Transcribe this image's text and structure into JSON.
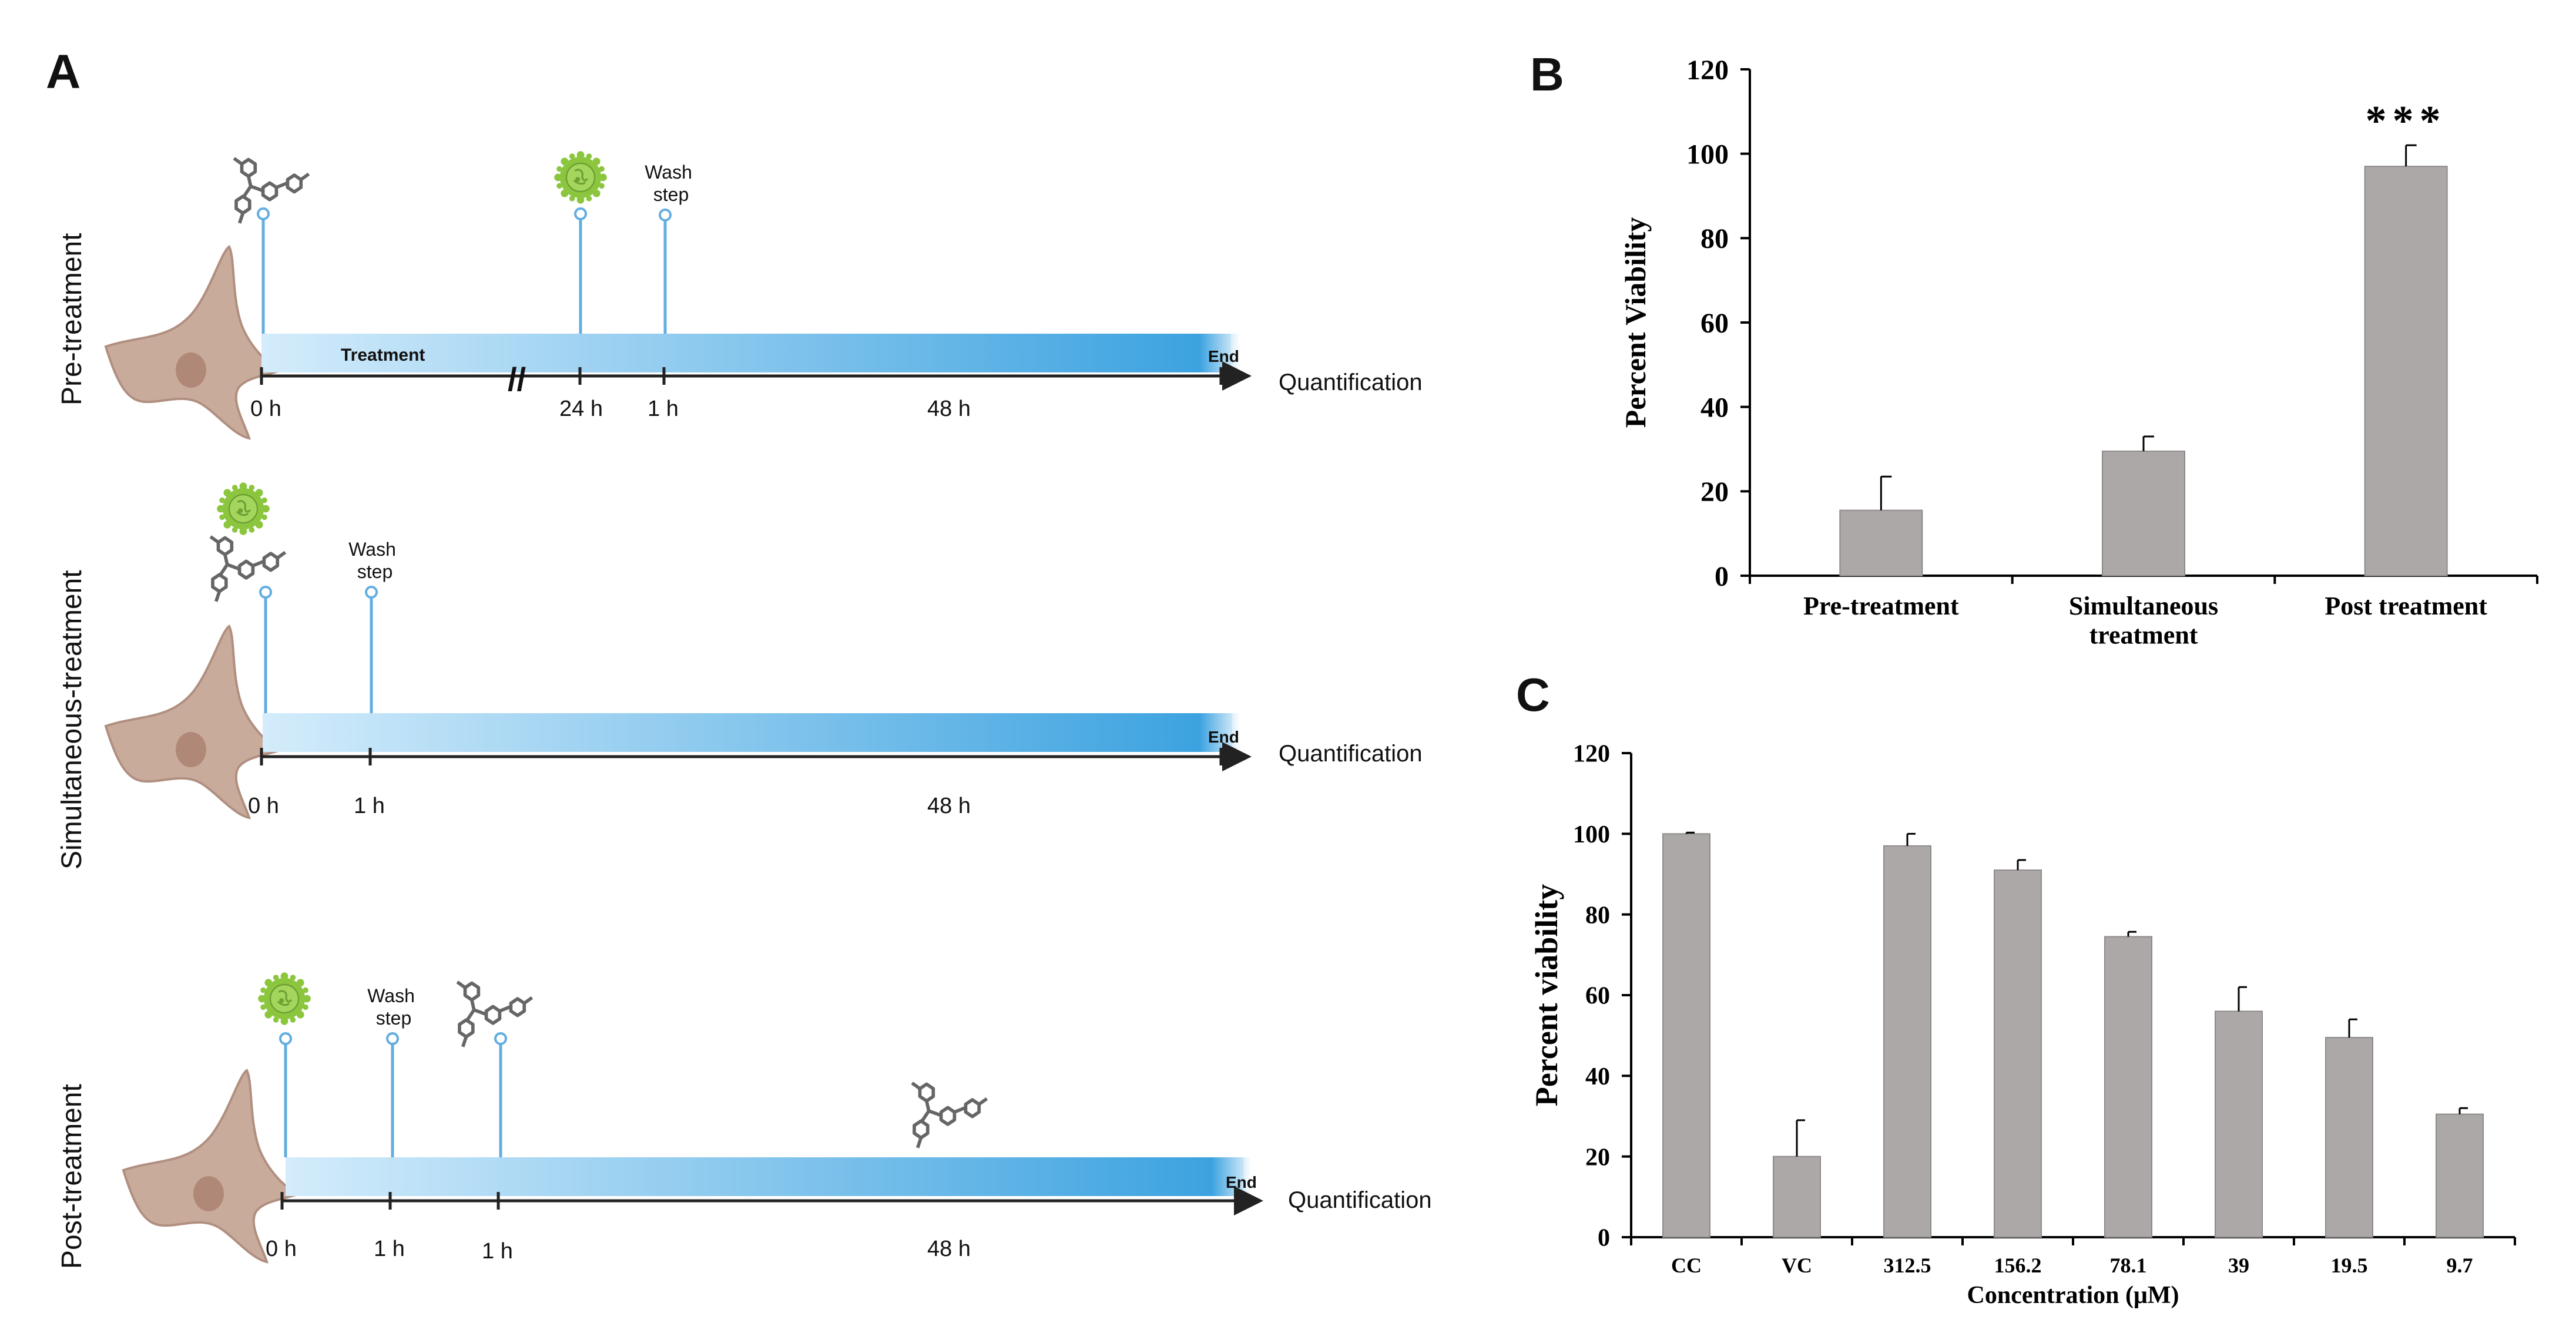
{
  "colors": {
    "timeline_start": "#d4ecfb",
    "timeline_end": "#37a0df",
    "pin": "#62ade0",
    "cell_fill": "#c9ab9c",
    "cell_stroke": "#b08f80",
    "nucleus": "#b08878",
    "virus": "#8cc63f",
    "virus_dark": "#6da033",
    "molecule": "#666666",
    "bar_fill": "#aca8a8",
    "bar_stroke": "#8e8a8a",
    "axis": "#000000"
  },
  "panel_a": {
    "label": "A",
    "rows": [
      {
        "id": "pre",
        "title": "Pre-treatment",
        "band_label": "Treatment",
        "end_label": "End",
        "quant_label": "Quantification",
        "ticks": [
          "0 h",
          "24 h",
          "1 h",
          "48 h"
        ],
        "break_mark": "//",
        "wash_label": [
          "Wash",
          "step"
        ],
        "pins": [
          {
            "icon": "molecule-icon"
          },
          {
            "icon": "virus-icon"
          },
          {
            "icon": "none",
            "label": "Wash step"
          }
        ]
      },
      {
        "id": "sim",
        "title": "Simultaneous-treatment",
        "end_label": "End",
        "quant_label": "Quantification",
        "ticks": [
          "0 h",
          "1 h",
          "48 h"
        ],
        "wash_label": [
          "Wash",
          "step"
        ],
        "pins": [
          {
            "icon": "virus-and-molecule-icon"
          },
          {
            "icon": "none",
            "label": "Wash step"
          }
        ]
      },
      {
        "id": "post",
        "title": "Post-treatment",
        "end_label": "End",
        "quant_label": "Quantification",
        "ticks": [
          "0 h",
          "1 h",
          "1 h",
          "48 h"
        ],
        "wash_label": [
          "Wash",
          "step"
        ],
        "pins": [
          {
            "icon": "virus-icon"
          },
          {
            "icon": "none",
            "label": "Wash step"
          },
          {
            "icon": "molecule-icon"
          }
        ],
        "floating_icon": "molecule-icon"
      }
    ]
  },
  "chart_data": [
    {
      "panel": "B",
      "type": "bar",
      "title": "",
      "xlabel": "",
      "ylabel": "Percent Viability",
      "categories": [
        "Pre-treatment",
        "Simultaneous treatment",
        "Post treatment"
      ],
      "category_lines": [
        [
          "Pre-treatment"
        ],
        [
          "Simultaneous",
          "treatment"
        ],
        [
          "Post treatment"
        ]
      ],
      "values": [
        15.5,
        29.5,
        97
      ],
      "errors": [
        8,
        3.5,
        5
      ],
      "ylim": [
        0,
        120
      ],
      "yticks": [
        0,
        20,
        40,
        60,
        80,
        100,
        120
      ],
      "annotations": [
        {
          "category": "Post treatment",
          "text": "***"
        }
      ],
      "grid": false
    },
    {
      "panel": "C",
      "type": "bar",
      "title": "",
      "xlabel": "Concentration (μM)",
      "ylabel": "Percent viability",
      "categories": [
        "CC",
        "VC",
        "312.5",
        "156.2",
        "78.1",
        "39",
        "19.5",
        "9.7"
      ],
      "values": [
        100,
        20,
        97,
        91,
        74.5,
        56,
        49.5,
        30.5
      ],
      "errors": [
        0.3,
        9,
        3,
        2.5,
        1.2,
        6,
        4.5,
        1.5
      ],
      "ylim": [
        0,
        120
      ],
      "yticks": [
        0,
        20,
        40,
        60,
        80,
        100,
        120
      ],
      "grid": false
    }
  ]
}
